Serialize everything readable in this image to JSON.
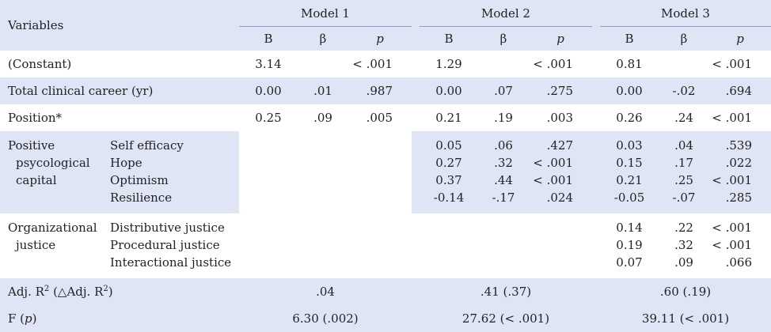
{
  "header": {
    "variables": "Variables",
    "models": [
      "Model 1",
      "Model 2",
      "Model 3"
    ],
    "sub": [
      "B",
      "β",
      "p"
    ]
  },
  "rows": {
    "constant": {
      "label": "(Constant)",
      "m1": [
        "3.14",
        "",
        "< .001"
      ],
      "m2": [
        "1.29",
        "",
        "< .001"
      ],
      "m3": [
        "0.81",
        "",
        "< .001"
      ]
    },
    "career": {
      "label": "Total clinical career (yr)",
      "m1": [
        "0.00",
        ".01",
        ".987"
      ],
      "m2": [
        "0.00",
        ".07",
        ".275"
      ],
      "m3": [
        "0.00",
        "-.02",
        ".694"
      ]
    },
    "position": {
      "label": "Position*",
      "m1": [
        "0.25",
        ".09",
        ".005"
      ],
      "m2": [
        "0.21",
        ".19",
        ".003"
      ],
      "m3": [
        "0.26",
        ".24",
        "< .001"
      ]
    }
  },
  "psycap": {
    "group_lines": [
      "Positive",
      "psycological",
      "capital"
    ],
    "items": [
      "Self efficacy",
      "Hope",
      "Optimism",
      "Resilience"
    ],
    "m2": {
      "B": [
        "0.05",
        "0.27",
        "0.37",
        "-0.14"
      ],
      "beta": [
        ".06",
        ".32",
        ".44",
        "-.17"
      ],
      "p": [
        ".427",
        "< .001",
        "< .001",
        ".024"
      ]
    },
    "m3": {
      "B": [
        "0.03",
        "0.15",
        "0.21",
        "-0.05"
      ],
      "beta": [
        ".04",
        ".17",
        ".25",
        "-.07"
      ],
      "p": [
        ".539",
        ".022",
        "< .001",
        ".285"
      ]
    }
  },
  "justice": {
    "group_lines": [
      "Organizational",
      "justice"
    ],
    "items": [
      "Distributive justice",
      "Procedural justice",
      "Interactional justice"
    ],
    "m3": {
      "B": [
        "0.14",
        "0.19",
        "0.07"
      ],
      "beta": [
        ".22",
        ".32",
        ".09"
      ],
      "p": [
        "< .001",
        "< .001",
        ".066"
      ]
    }
  },
  "adj": {
    "label_main": "Adj. R",
    "label_sup": "2",
    "label_mid": " (△Adj. R",
    "label_sup2": "2",
    "label_end": ")",
    "values": [
      ".04",
      ".41 (.37)",
      ".60 (.19)"
    ]
  },
  "f": {
    "label_main": "F (",
    "label_p": "p",
    "label_end": ")",
    "values": [
      "6.30 (.002)",
      "27.62 (< .001)",
      "39.11 (< .001)"
    ]
  }
}
